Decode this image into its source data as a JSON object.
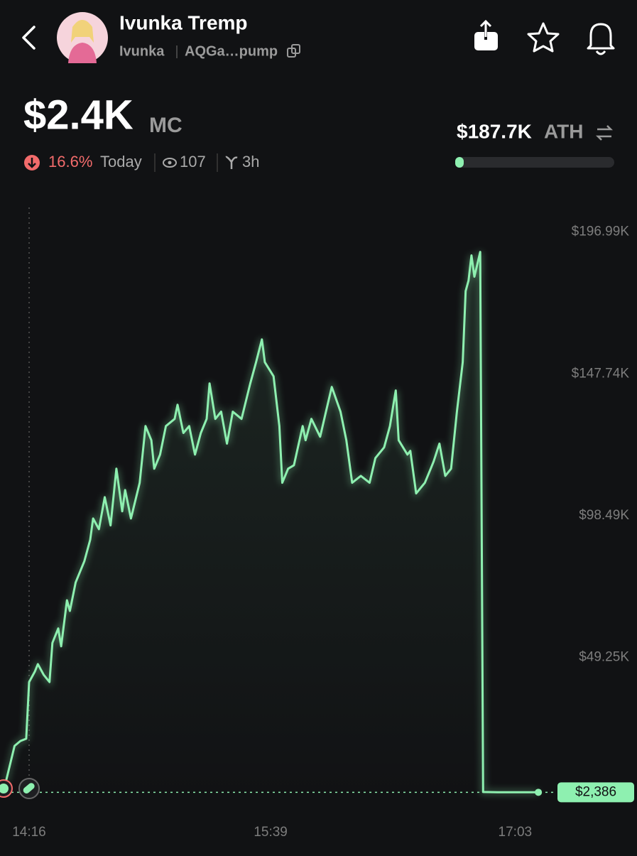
{
  "header": {
    "name": "Ivunka Tremp",
    "ticker": "Ivunka",
    "address": "AQGa…pump"
  },
  "stats": {
    "market_cap": "$2.4K",
    "market_cap_unit": "MC",
    "ath": "$187.7K",
    "ath_unit": "ATH",
    "change": "16.6%",
    "change_period": "Today",
    "views": "107",
    "age": "3h"
  },
  "chart_data": {
    "type": "line",
    "x": [
      848,
      851,
      853,
      855,
      856,
      858,
      859,
      861,
      863,
      864,
      866,
      867,
      869,
      870,
      872,
      875,
      877,
      878,
      880,
      882,
      884,
      886,
      888,
      889,
      891,
      894,
      896,
      898,
      899,
      901,
      903,
      906,
      907,
      909,
      911,
      913,
      915,
      917,
      918,
      920,
      922,
      924,
      926,
      929,
      932,
      934,
      936,
      937,
      940,
      942,
      943,
      945,
      947,
      950,
      951,
      953,
      956,
      958,
      960,
      963,
      965,
      967,
      970,
      973,
      975,
      978,
      980,
      982,
      983,
      986,
      987,
      989,
      992,
      994,
      995,
      997,
      999,
      1001,
      1003,
      1005,
      1006,
      1007,
      1008,
      1009,
      1011,
      1012,
      1017,
      1031
    ],
    "series": [
      {
        "name": "MC",
        "color": "#8ef0b0",
        "values": [
          6000,
          18500,
          20200,
          21000,
          40700,
          44400,
          46900,
          43200,
          40700,
          54300,
          59300,
          53100,
          69100,
          65400,
          75300,
          82700,
          90100,
          97500,
          93800,
          104900,
          95100,
          114800,
          100000,
          107400,
          97500,
          109900,
          129600,
          124700,
          114800,
          119700,
          129600,
          132100,
          137000,
          127200,
          129600,
          119700,
          127200,
          132100,
          144400,
          132100,
          134600,
          123500,
          134600,
          132100,
          144400,
          151800,
          159700,
          151800,
          146900,
          129600,
          109900,
          114800,
          116000,
          129600,
          124700,
          132100,
          125900,
          134600,
          143200,
          134600,
          124700,
          109900,
          112300,
          109900,
          118500,
          122200,
          129600,
          142000,
          124700,
          119700,
          121000,
          106200,
          109900,
          114800,
          117300,
          123500,
          112300,
          114800,
          134600,
          151800,
          176500,
          180200,
          188900,
          181500,
          190100,
          2500,
          2400,
          2386
        ]
      }
    ],
    "xlim": [
      846,
      1040
    ],
    "xticks": [
      {
        "value": 856,
        "label": "14:16"
      },
      {
        "value": 939,
        "label": "15:39"
      },
      {
        "value": 1023,
        "label": "17:03"
      }
    ],
    "ylim": [
      0,
      210000
    ],
    "yticks": [
      {
        "value": 49250,
        "label": "$49.25K"
      },
      {
        "value": 98490,
        "label": "$98.49K"
      },
      {
        "value": 147740,
        "label": "$147.74K"
      },
      {
        "value": 196990,
        "label": "$196.99K"
      }
    ],
    "last_price": {
      "value": 2386,
      "label": "$2,386"
    }
  }
}
